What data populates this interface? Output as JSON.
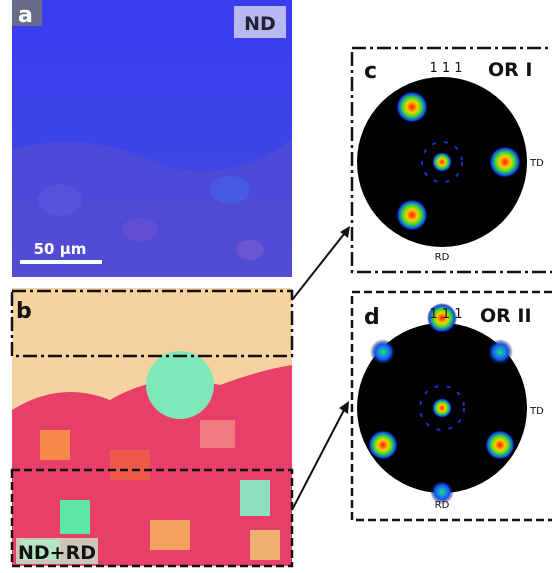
{
  "panel_a": {
    "label": "a",
    "tag": "ND",
    "scale_bar": "50 μm"
  },
  "panel_b": {
    "label": "b",
    "tag": "ND+RD"
  },
  "panel_c": {
    "label": "c",
    "pole": "1 1 1",
    "title": "OR I",
    "side": "TD",
    "bottom": "RD"
  },
  "panel_d": {
    "label": "d",
    "pole": "1 1 1",
    "title": "OR II",
    "side": "TD",
    "bottom": "RD"
  }
}
